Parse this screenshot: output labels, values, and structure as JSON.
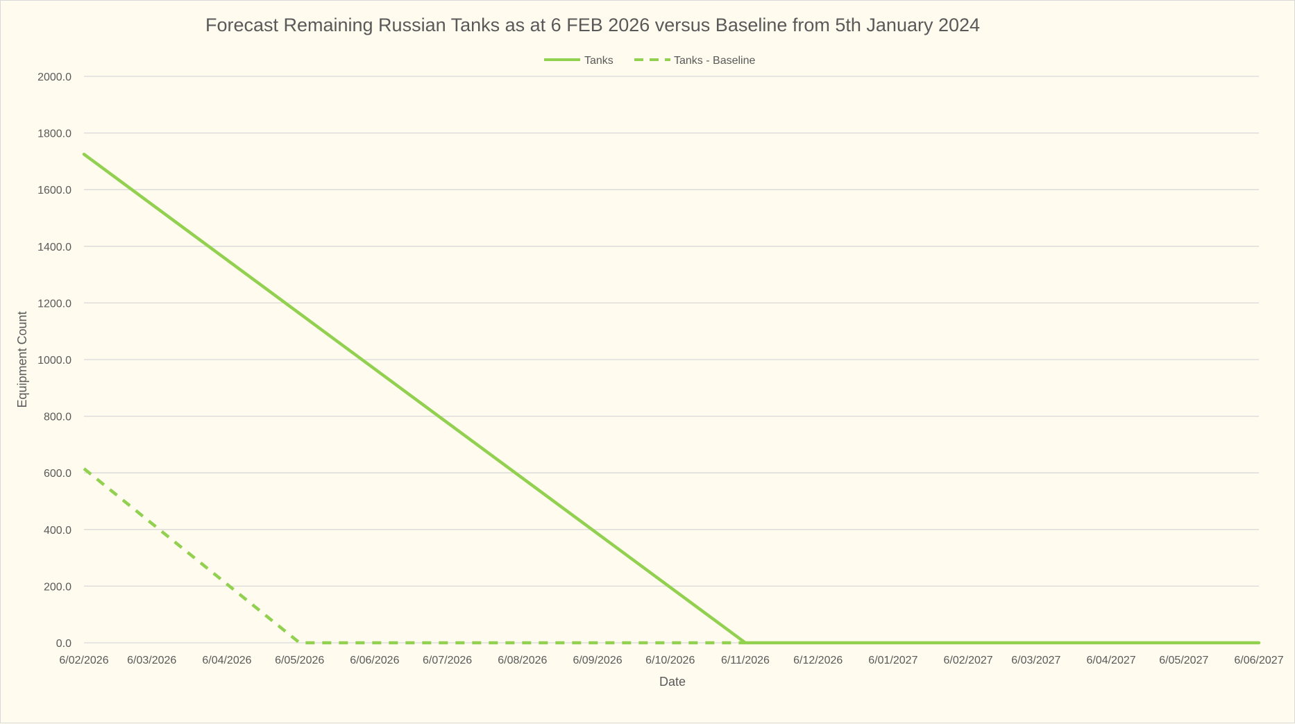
{
  "chart_data": {
    "type": "line",
    "title": "Forecast Remaining Russian Tanks as at 6 FEB 2026 versus Baseline from 5th January 2024",
    "xlabel": "Date",
    "ylabel": "Equipment Count",
    "ylim": [
      0,
      2000
    ],
    "yticks": [
      "0.0",
      "200.0",
      "400.0",
      "600.0",
      "800.0",
      "1000.0",
      "1200.0",
      "1400.0",
      "1600.0",
      "1800.0",
      "2000.0"
    ],
    "xticks": [
      "6/02/2026",
      "6/03/2026",
      "6/04/2026",
      "6/05/2026",
      "6/06/2026",
      "6/07/2026",
      "6/08/2026",
      "6/09/2026",
      "6/10/2026",
      "6/11/2026",
      "6/12/2026",
      "6/01/2027",
      "6/02/2027",
      "6/03/2027",
      "6/04/2027",
      "6/05/2027",
      "6/06/2027"
    ],
    "xrange": [
      "2026-02-06",
      "2027-06-06"
    ],
    "grid": true,
    "legend_position": "top",
    "series": [
      {
        "name": "Tanks",
        "color": "#92d050",
        "dash": "solid",
        "points": [
          {
            "x": "2026-02-06",
            "y": 1725
          },
          {
            "x": "2026-11-06",
            "y": 0
          },
          {
            "x": "2027-06-06",
            "y": 0
          }
        ]
      },
      {
        "name": "Tanks - Baseline",
        "color": "#92d050",
        "dash": "dashed",
        "points": [
          {
            "x": "2026-02-06",
            "y": 615
          },
          {
            "x": "2026-05-06",
            "y": 0
          },
          {
            "x": "2026-11-06",
            "y": 0
          }
        ]
      }
    ]
  }
}
